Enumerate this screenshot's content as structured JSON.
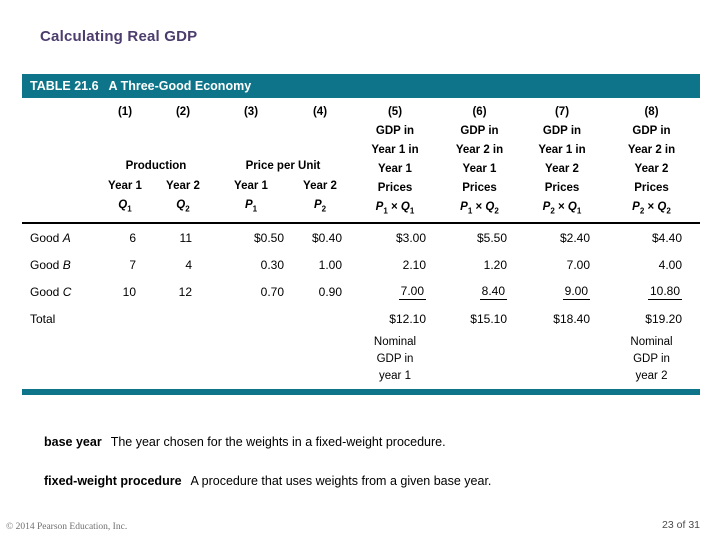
{
  "slide": {
    "title": "Calculating Real GDP",
    "copyright": "© 2014 Pearson Education, Inc.",
    "page": "23 of 31"
  },
  "colors": {
    "teal": "#0e7489",
    "title_purple": "#4c3d6d"
  },
  "table": {
    "caption_label": "TABLE 21.6",
    "caption_title": "A Three-Good Economy",
    "col_numbers": [
      "(1)",
      "(2)",
      "(3)",
      "(4)",
      "(5)",
      "(6)",
      "(7)",
      "(8)"
    ],
    "groups": [
      {
        "label": "Production"
      },
      {
        "label": "Price per Unit"
      }
    ],
    "sub_headers": [
      {
        "year": "Year 1",
        "sym": "Q",
        "sub": "1"
      },
      {
        "year": "Year 2",
        "sym": "Q",
        "sub": "2"
      },
      {
        "year": "Year 1",
        "sym": "P",
        "sub": "1"
      },
      {
        "year": "Year 2",
        "sym": "P",
        "sub": "2"
      }
    ],
    "gdp_headers": [
      {
        "lines": [
          "GDP in",
          "Year 1 in",
          "Year 1",
          "Prices"
        ],
        "formula": {
          "a": "P",
          "asub": "1",
          "times": "×",
          "b": "Q",
          "bsub": "1"
        }
      },
      {
        "lines": [
          "GDP in",
          "Year 2 in",
          "Year 1",
          "Prices"
        ],
        "formula": {
          "a": "P",
          "asub": "1",
          "times": "×",
          "b": "Q",
          "bsub": "2"
        }
      },
      {
        "lines": [
          "GDP in",
          "Year 1 in",
          "Year 2",
          "Prices"
        ],
        "formula": {
          "a": "P",
          "asub": "2",
          "times": "×",
          "b": "Q",
          "bsub": "1"
        }
      },
      {
        "lines": [
          "GDP in",
          "Year 2 in",
          "Year 2",
          "Prices"
        ],
        "formula": {
          "a": "P",
          "asub": "2",
          "times": "×",
          "b": "Q",
          "bsub": "2"
        }
      }
    ],
    "rows": [
      {
        "label": "Good",
        "label_italic": "A",
        "values": [
          "6",
          "11",
          "$0.50",
          "$0.40",
          "$3.00",
          "$5.50",
          "$2.40",
          "$4.40"
        ],
        "underline_cols": []
      },
      {
        "label": "Good",
        "label_italic": "B",
        "values": [
          "7",
          "4",
          "0.30",
          "1.00",
          "2.10",
          "1.20",
          "7.00",
          "4.00"
        ],
        "underline_cols": []
      },
      {
        "label": "Good",
        "label_italic": "C",
        "values": [
          "10",
          "12",
          "0.70",
          "0.90",
          "7.00",
          "8.40",
          "9.00",
          "10.80"
        ],
        "underline_cols": [
          4,
          5,
          6,
          7
        ]
      },
      {
        "label": "Total",
        "label_italic": "",
        "values": [
          "",
          "",
          "",
          "",
          "$12.10",
          "$15.10",
          "$18.40",
          "$19.20"
        ],
        "underline_cols": []
      }
    ],
    "footnotes": [
      {
        "col": 4,
        "lines": [
          "Nominal",
          "GDP in",
          "year 1"
        ]
      },
      {
        "col": 7,
        "lines": [
          "Nominal",
          "GDP in",
          "year 2"
        ]
      }
    ]
  },
  "definitions": [
    {
      "term": "base year",
      "text": "The year chosen for the weights in a fixed-weight procedure."
    },
    {
      "term": "fixed-weight procedure",
      "text": "A procedure that uses weights from a given base year."
    }
  ]
}
